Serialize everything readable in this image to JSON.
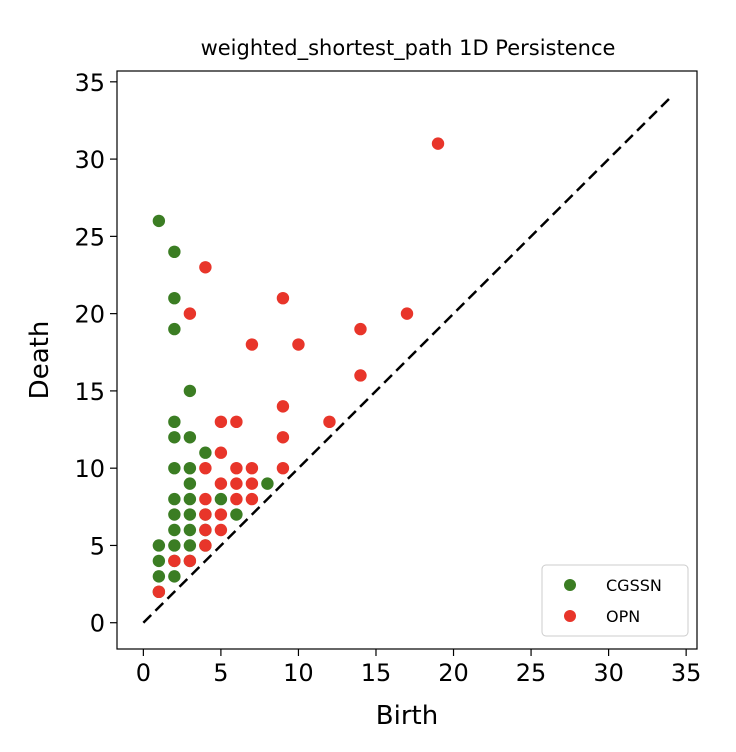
{
  "chart_data": {
    "type": "scatter",
    "title": "weighted_shortest_path 1D Persistence",
    "xlabel": "Birth",
    "ylabel": "Death",
    "xlim": [
      -1.7,
      35.7
    ],
    "ylim": [
      -1.7,
      35.7
    ],
    "xticks": [
      0,
      5,
      10,
      15,
      20,
      25,
      30,
      35
    ],
    "yticks": [
      0,
      5,
      10,
      15,
      20,
      25,
      30,
      35
    ],
    "xtick_labels": [
      "0",
      "5",
      "10",
      "15",
      "20",
      "25",
      "30",
      "35"
    ],
    "ytick_labels": [
      "0",
      "5",
      "10",
      "15",
      "20",
      "25",
      "30",
      "35"
    ],
    "diagonal": {
      "from": [
        0,
        0
      ],
      "to": [
        34,
        34
      ],
      "style": "dashed",
      "color": "#000000"
    },
    "legend_position": "lower-right",
    "series": [
      {
        "name": "CGSSN",
        "color": "#3b7d23",
        "points": [
          [
            1,
            26
          ],
          [
            1,
            5
          ],
          [
            1,
            4
          ],
          [
            1,
            3
          ],
          [
            1,
            2
          ],
          [
            2,
            24
          ],
          [
            2,
            21
          ],
          [
            2,
            19
          ],
          [
            2,
            13
          ],
          [
            2,
            12
          ],
          [
            2,
            10
          ],
          [
            2,
            8
          ],
          [
            2,
            7
          ],
          [
            2,
            6
          ],
          [
            2,
            5
          ],
          [
            2,
            4
          ],
          [
            2,
            3
          ],
          [
            3,
            15
          ],
          [
            3,
            12
          ],
          [
            3,
            10
          ],
          [
            3,
            9
          ],
          [
            3,
            8
          ],
          [
            3,
            7
          ],
          [
            3,
            6
          ],
          [
            3,
            5
          ],
          [
            3,
            4
          ],
          [
            4,
            11
          ],
          [
            4,
            7
          ],
          [
            4,
            6
          ],
          [
            4,
            5
          ],
          [
            5,
            8
          ],
          [
            6,
            7
          ],
          [
            8,
            9
          ]
        ]
      },
      {
        "name": "OPN",
        "color": "#e8352a",
        "points": [
          [
            1,
            2
          ],
          [
            2,
            4
          ],
          [
            3,
            20
          ],
          [
            3,
            4
          ],
          [
            4,
            23
          ],
          [
            4,
            10
          ],
          [
            4,
            8
          ],
          [
            4,
            7
          ],
          [
            4,
            6
          ],
          [
            4,
            5
          ],
          [
            5,
            13
          ],
          [
            5,
            11
          ],
          [
            5,
            9
          ],
          [
            5,
            7
          ],
          [
            5,
            6
          ],
          [
            6,
            13
          ],
          [
            6,
            10
          ],
          [
            6,
            9
          ],
          [
            6,
            8
          ],
          [
            7,
            18
          ],
          [
            7,
            10
          ],
          [
            7,
            9
          ],
          [
            7,
            8
          ],
          [
            9,
            21
          ],
          [
            9,
            14
          ],
          [
            9,
            12
          ],
          [
            9,
            10
          ],
          [
            10,
            18
          ],
          [
            12,
            13
          ],
          [
            14,
            19
          ],
          [
            14,
            16
          ],
          [
            17,
            20
          ],
          [
            19,
            31
          ]
        ]
      }
    ]
  }
}
